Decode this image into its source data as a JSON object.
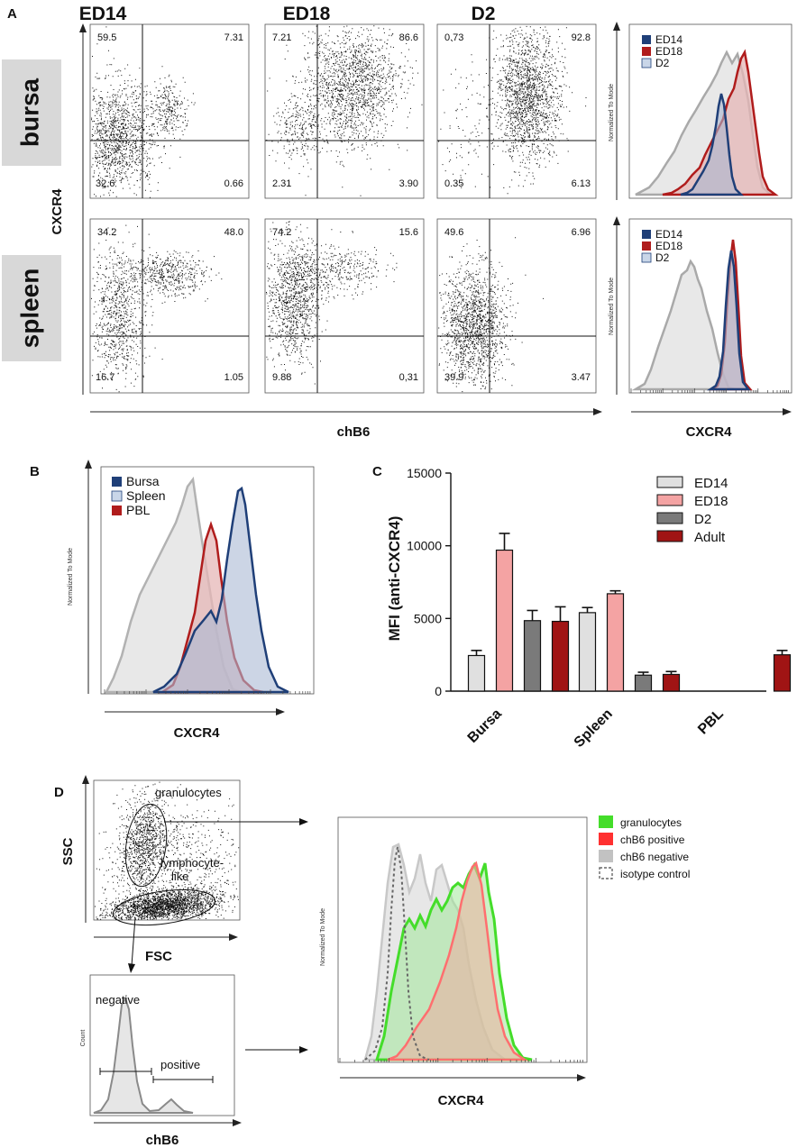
{
  "panels": {
    "a": {
      "letter": "A",
      "columns": [
        "ED14",
        "ED18",
        "D2"
      ],
      "rows": [
        "bursa",
        "spleen"
      ],
      "y_label": "CXCR4",
      "x_label": "chB6",
      "hist_x_label": "CXCR4",
      "hist_y_label": "Normalized To Mode",
      "quadrants": {
        "bursa": [
          {
            "ul": "59.5",
            "ur": "7.31",
            "ll": "32.6",
            "lr": "0.66"
          },
          {
            "ul": "7.21",
            "ur": "86.6",
            "ll": "2.31",
            "lr": "3.90"
          },
          {
            "ul": "0.73",
            "ur": "92.8",
            "ll": "0.35",
            "lr": "6.13"
          }
        ],
        "spleen": [
          {
            "ul": "34.2",
            "ur": "48.0",
            "ll": "16.7",
            "lr": "1.05"
          },
          {
            "ul": "74.2",
            "ur": "15.6",
            "ll": "9.88",
            "lr": "0,31"
          },
          {
            "ul": "49.6",
            "ur": "6.96",
            "ll": "39.9",
            "lr": "3.47"
          }
        ]
      },
      "hist_legend": [
        "ED14",
        "ED18",
        "D2"
      ]
    },
    "b": {
      "letter": "B",
      "legend": [
        "Bursa",
        "Spleen",
        "PBL"
      ],
      "x_label": "CXCR4",
      "y_label": "Normalized To Mode"
    },
    "c": {
      "letter": "C"
    },
    "d": {
      "letter": "D",
      "scatter_x": "FSC",
      "scatter_y": "SSC",
      "gate_granulocytes": "granulocytes",
      "gate_lymph_1": "lymphocyte-",
      "gate_lymph_2": "like",
      "hist_small_x": "chB6",
      "hist_small_y": "Count",
      "gate_negative": "negative",
      "gate_positive": "positive",
      "hist_big_x": "CXCR4",
      "hist_big_y": "Normalized To Mode",
      "legend": [
        "granulocytes",
        "chB6 positive",
        "chB6 negative",
        "isotype control"
      ]
    }
  },
  "colors": {
    "ed14": "#1f3f78",
    "ed18": "#b01c1c",
    "d2": "#c9d6e8",
    "bar_ed14": "#e0e0e0",
    "bar_ed18": "#f4a3a3",
    "bar_d2": "#7a7a7a",
    "bar_adult": "#a01414",
    "gran": "#44dd2a",
    "pos": "#ff6f6f",
    "neg": "#b8b8b8"
  },
  "chart_data": [
    {
      "type": "bar",
      "title": "",
      "panel": "C",
      "categories": [
        "Bursa",
        "Spleen",
        "PBL"
      ],
      "series": [
        {
          "name": "ED14",
          "values": [
            2450,
            5400,
            null
          ],
          "errors": [
            350,
            350,
            null
          ]
        },
        {
          "name": "ED18",
          "values": [
            9700,
            6700,
            null
          ],
          "errors": [
            1150,
            200,
            null
          ]
        },
        {
          "name": "D2",
          "values": [
            4850,
            1100,
            null
          ],
          "errors": [
            700,
            200,
            null
          ]
        },
        {
          "name": "Adult",
          "values": [
            4800,
            1150,
            2500
          ],
          "errors": [
            1000,
            200,
            300
          ]
        }
      ],
      "ylabel": "MFI (anti-CXCR4)",
      "xlabel": "",
      "ylim": [
        0,
        15000
      ],
      "yticks": [
        0,
        5000,
        10000,
        15000
      ],
      "legend_position": "top-right"
    }
  ]
}
